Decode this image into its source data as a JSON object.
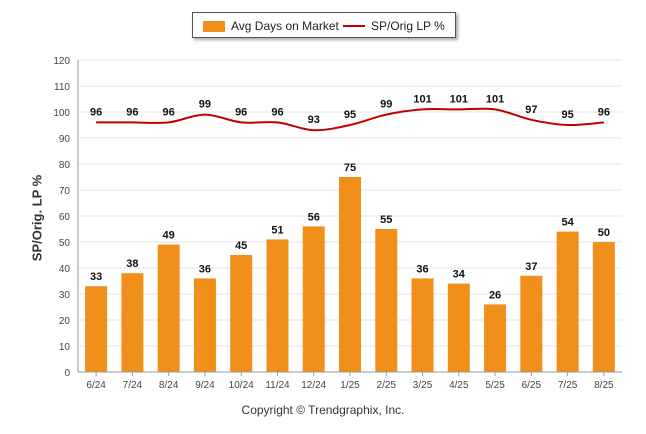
{
  "colors": {
    "bar": "#F0901A",
    "line": "#C00000",
    "grid": "#e6e6e6",
    "axis": "#999999"
  },
  "legend": {
    "bar_label": "Avg Days on Market",
    "line_label": "SP/Orig LP %"
  },
  "copyright": "Copyright © Trendgraphix, Inc.",
  "chart_data": {
    "type": "bar",
    "ylabel": "SP/Orig. LP %",
    "ylim": [
      0,
      120
    ],
    "yticks": [
      0,
      10,
      20,
      30,
      40,
      50,
      60,
      70,
      80,
      90,
      100,
      110,
      120
    ],
    "grid": true,
    "legend_position": "top",
    "categories": [
      "6/24",
      "7/24",
      "8/24",
      "9/24",
      "10/24",
      "11/24",
      "12/24",
      "1/25",
      "2/25",
      "3/25",
      "4/25",
      "5/25",
      "6/25",
      "7/25",
      "8/25"
    ],
    "series": [
      {
        "name": "Avg Days on Market",
        "type": "bar",
        "values": [
          33,
          38,
          49,
          36,
          45,
          51,
          56,
          75,
          55,
          36,
          34,
          26,
          37,
          54,
          50
        ]
      },
      {
        "name": "SP/Orig LP %",
        "type": "line",
        "values": [
          96,
          96,
          96,
          99,
          96,
          96,
          93,
          95,
          99,
          101,
          101,
          101,
          97,
          95,
          96
        ]
      }
    ]
  }
}
